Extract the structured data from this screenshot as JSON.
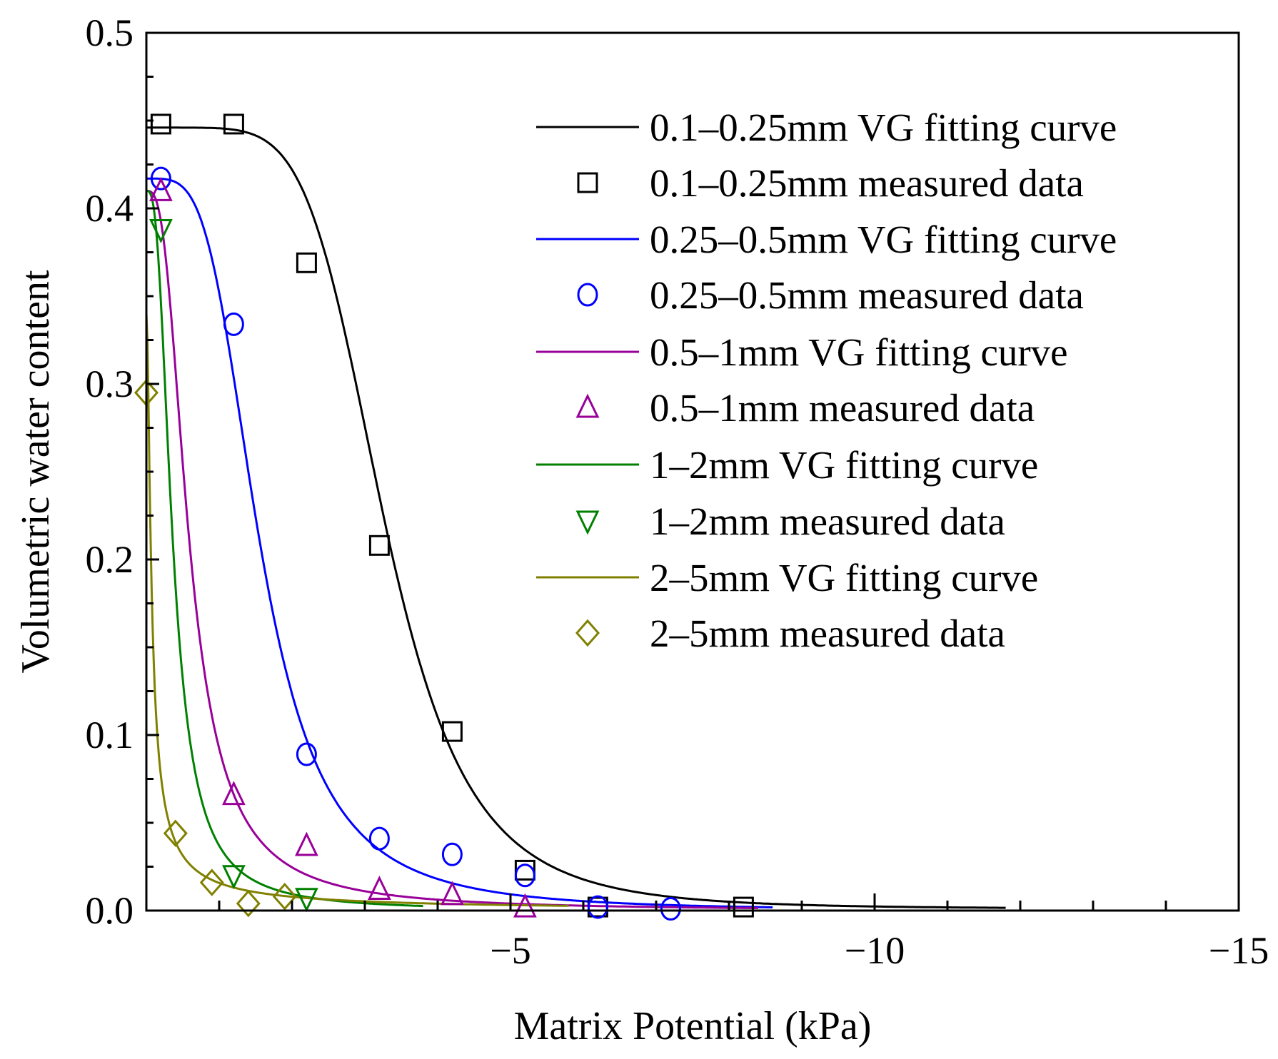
{
  "chart_data": {
    "type": "line",
    "title": "",
    "xlabel": "Matrix Potential (kPa)",
    "ylabel": "Volumetric water content",
    "xlim": [
      0,
      -15
    ],
    "ylim": [
      0,
      0.5
    ],
    "x_ticks": [
      -5,
      -10,
      -15
    ],
    "x_tick_labels": [
      "−5",
      "−10",
      "−15"
    ],
    "y_ticks": [
      0,
      0.1,
      0.2,
      0.3,
      0.4,
      0.5
    ],
    "y_tick_labels": [
      "0.0",
      "0.1",
      "0.2",
      "0.3",
      "0.4",
      "0.5"
    ],
    "grid": false,
    "legend_position": "top-right",
    "series": [
      {
        "name": "0.1–0.25mm VG fitting curve",
        "kind": "line",
        "color": "#000000",
        "vg": {
          "theta_s": 0.446,
          "theta_r": 0.001,
          "alpha": 0.32,
          "n": 6
        },
        "x_range": [
          0,
          -11.8
        ]
      },
      {
        "name": "0.1–0.25mm measured data",
        "kind": "marker",
        "marker": "square",
        "color": "#000000",
        "x": [
          -0.2,
          -1.2,
          -2.2,
          -3.2,
          -4.2,
          -5.2,
          -6.2,
          -8.2
        ],
        "y": [
          0.448,
          0.448,
          0.369,
          0.208,
          0.102,
          0.023,
          0.002,
          0.002
        ]
      },
      {
        "name": "0.25–0.5mm VG fitting curve",
        "kind": "line",
        "color": "#0000ff",
        "vg": {
          "theta_s": 0.417,
          "theta_r": 0.0,
          "alpha": 0.71,
          "n": 4
        },
        "x_range": [
          0,
          -8.6
        ]
      },
      {
        "name": "0.25–0.5mm measured data",
        "kind": "marker",
        "marker": "circle",
        "color": "#0000ff",
        "x": [
          -0.2,
          -1.2,
          -2.2,
          -3.2,
          -4.2,
          -5.2,
          -6.2,
          -7.2
        ],
        "y": [
          0.417,
          0.334,
          0.089,
          0.041,
          0.032,
          0.02,
          0.002,
          0.001
        ]
      },
      {
        "name": "0.5–1mm VG fitting curve",
        "kind": "line",
        "color": "#990099",
        "vg": {
          "theta_s": 0.41,
          "theta_r": 0.0,
          "alpha": 2.03,
          "n": 3
        },
        "x_range": [
          0,
          -8.4
        ]
      },
      {
        "name": "0.5–1mm measured data",
        "kind": "marker",
        "marker": "triangle-up",
        "color": "#990099",
        "x": [
          -0.2,
          -1.2,
          -2.2,
          -3.2,
          -4.2,
          -5.2
        ],
        "y": [
          0.41,
          0.066,
          0.037,
          0.012,
          0.009,
          0.002
        ]
      },
      {
        "name": "1–2mm VG fitting curve",
        "kind": "line",
        "color": "#008000",
        "vg": {
          "theta_s": 0.41,
          "theta_r": 0.0,
          "alpha": 3.3,
          "n": 3
        },
        "x_range": [
          0,
          -3.8
        ]
      },
      {
        "name": "1–2mm measured data",
        "kind": "marker",
        "marker": "triangle-down",
        "color": "#008000",
        "x": [
          -0.2,
          -1.2,
          -2.2
        ],
        "y": [
          0.388,
          0.02,
          0.007
        ]
      },
      {
        "name": "2–5mm VG fitting curve",
        "kind": "line",
        "color": "#808000",
        "vg": {
          "theta_s": 0.34,
          "theta_r": 0.0,
          "alpha": 21.6,
          "n": 2
        },
        "x_range": [
          0,
          -5.8
        ]
      },
      {
        "name": "2–5mm measured data",
        "kind": "marker",
        "marker": "diamond",
        "color": "#808000",
        "x": [
          0,
          -0.4,
          -0.9,
          -1.4,
          -1.9
        ],
        "y": [
          0.295,
          0.044,
          0.016,
          0.004,
          0.008
        ]
      }
    ]
  }
}
